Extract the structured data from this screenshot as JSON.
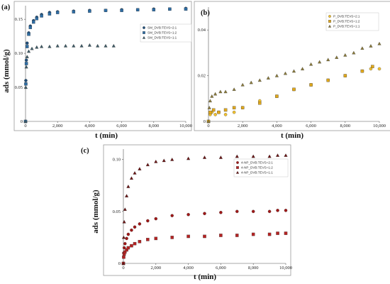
{
  "chart_data": [
    {
      "panel_label": "(a)",
      "type": "scatter",
      "xlabel": "t (min)",
      "ylabel": "ads (mmol/g)",
      "xlim": [
        0,
        10000
      ],
      "ylim": [
        0,
        0.17
      ],
      "xticks": [
        "0",
        "2,000",
        "4,000",
        "6,000",
        "8,000",
        "10,000"
      ],
      "yticks": [
        "0",
        "0.05",
        "0.10",
        "0.15"
      ],
      "legend_position": "top-right",
      "series": [
        {
          "name": "SM_DVB:TEVS=2:1",
          "color": "#1f4e7a",
          "marker": "circle",
          "x": [
            0,
            20,
            50,
            100,
            200,
            300,
            500,
            700,
            1000,
            1500,
            2000,
            3000,
            4000,
            5000,
            6000,
            7000,
            8000,
            9000,
            10000
          ],
          "y": [
            0.0,
            0.06,
            0.09,
            0.115,
            0.13,
            0.14,
            0.148,
            0.153,
            0.157,
            0.16,
            0.161,
            0.162,
            0.163,
            0.163,
            0.164,
            0.164,
            0.165,
            0.165,
            0.166
          ]
        },
        {
          "name": "SM_DVB:TEVS=1:2",
          "color": "#2e6da4",
          "marker": "square",
          "x": [
            0,
            20,
            50,
            100,
            200,
            300,
            500,
            700,
            1000,
            1500,
            2000,
            3000,
            4000,
            5000,
            6000,
            7000,
            8000,
            9000,
            10000
          ],
          "y": [
            0.0,
            0.055,
            0.085,
            0.11,
            0.128,
            0.138,
            0.146,
            0.151,
            0.155,
            0.158,
            0.16,
            0.161,
            0.162,
            0.163,
            0.163,
            0.164,
            0.164,
            0.165,
            0.165
          ]
        },
        {
          "name": "SM_DVB:TEVS=1:1",
          "color": "#3d5a66",
          "marker": "triangle",
          "x": [
            0,
            20,
            50,
            100,
            200,
            400,
            700,
            1000,
            1500,
            2000,
            2500,
            3000,
            3500,
            4000,
            4500,
            5000,
            5500
          ],
          "y": [
            0.0,
            0.05,
            0.08,
            0.095,
            0.103,
            0.107,
            0.109,
            0.11,
            0.11,
            0.111,
            0.111,
            0.111,
            0.111,
            0.112,
            0.111,
            0.111,
            0.111
          ]
        }
      ]
    },
    {
      "panel_label": "(b)",
      "type": "scatter",
      "xlabel": "t (min)",
      "ylabel": "",
      "xlim": [
        0,
        10000
      ],
      "ylim": [
        0,
        0.05
      ],
      "xticks": [
        "0",
        "2,000",
        "4,000",
        "6,000",
        "8,000",
        "10,000"
      ],
      "yticks": [
        "0",
        "0.02",
        "0.04"
      ],
      "legend_position": "top-right",
      "series": [
        {
          "name": "P_DVB:TEVS=2:1",
          "color": "#f2c12e",
          "marker": "circle",
          "x": [
            0,
            100,
            200,
            400,
            600,
            1000,
            1500,
            2000,
            3000,
            4000,
            5000,
            6000,
            7000,
            8000,
            9000,
            9500,
            10000
          ],
          "y": [
            0.0,
            0.003,
            0.004,
            0.003,
            0.004,
            0.003,
            0.004,
            0.006,
            0.009,
            0.011,
            0.014,
            0.016,
            0.018,
            0.02,
            0.022,
            0.023,
            0.023
          ]
        },
        {
          "name": "P_DVB:TEVS=1:2",
          "color": "#e0a81c",
          "marker": "square",
          "x": [
            0,
            100,
            300,
            600,
            1000,
            1500,
            2000,
            3000,
            4000,
            5000,
            6000,
            7000,
            8000,
            9000,
            9600
          ],
          "y": [
            0.0,
            0.004,
            0.005,
            0.004,
            0.005,
            0.006,
            0.006,
            0.008,
            0.011,
            0.014,
            0.016,
            0.018,
            0.02,
            0.022,
            0.024
          ]
        },
        {
          "name": "P_DVB:TEVS=1:1",
          "color": "#8a7a3a",
          "marker": "triangle",
          "x": [
            0,
            50,
            100,
            200,
            400,
            700,
            1000,
            1500,
            2000,
            2500,
            3000,
            3500,
            4000,
            4500,
            5000,
            5500,
            6000,
            6500,
            7000,
            7500,
            8000,
            8500,
            9000,
            9500,
            10000
          ],
          "y": [
            0.0,
            0.006,
            0.009,
            0.011,
            0.012,
            0.013,
            0.013,
            0.014,
            0.016,
            0.017,
            0.018,
            0.019,
            0.02,
            0.021,
            0.022,
            0.023,
            0.025,
            0.026,
            0.027,
            0.028,
            0.029,
            0.03,
            0.032,
            0.033,
            0.034
          ]
        }
      ]
    },
    {
      "panel_label": "(c)",
      "type": "scatter",
      "xlabel": "t (min)",
      "ylabel": "ads (mmol/g)",
      "xlim": [
        0,
        10000
      ],
      "ylim": [
        0,
        0.11
      ],
      "xticks": [
        "0",
        "2,000",
        "4,000",
        "6,000",
        "8,000",
        "10,000"
      ],
      "yticks": [
        "0",
        "0.05",
        "0.10"
      ],
      "legend_position": "top-right",
      "series": [
        {
          "name": "4-NP_DVB:TEVS=2:1",
          "color": "#a01818",
          "marker": "circle",
          "x": [
            0,
            20,
            50,
            100,
            200,
            300,
            500,
            700,
            1000,
            1500,
            2000,
            3000,
            4000,
            5000,
            6000,
            7000,
            8000,
            9000,
            9500,
            10000
          ],
          "y": [
            0.0,
            0.01,
            0.015,
            0.019,
            0.024,
            0.028,
            0.032,
            0.035,
            0.038,
            0.041,
            0.043,
            0.046,
            0.047,
            0.048,
            0.049,
            0.05,
            0.05,
            0.05,
            0.051,
            0.051
          ]
        },
        {
          "name": "4-NP_DVB:TEVS=1:2",
          "color": "#b52323",
          "marker": "square",
          "x": [
            0,
            20,
            50,
            100,
            200,
            300,
            500,
            700,
            1000,
            1500,
            2000,
            3000,
            4000,
            5000,
            6000,
            7000,
            8000,
            9000,
            9500,
            10000
          ],
          "y": [
            0.0,
            0.006,
            0.009,
            0.011,
            0.013,
            0.015,
            0.017,
            0.019,
            0.021,
            0.023,
            0.024,
            0.025,
            0.026,
            0.026,
            0.027,
            0.027,
            0.028,
            0.028,
            0.029,
            0.029
          ]
        },
        {
          "name": "4-NP_DVB:TEVS=1:1",
          "color": "#6a1414",
          "marker": "triangle",
          "x": [
            0,
            20,
            50,
            100,
            200,
            300,
            500,
            700,
            1000,
            1500,
            2000,
            2500,
            3000,
            4000,
            5000,
            6000,
            7000,
            8000,
            9000,
            9500,
            10000
          ],
          "y": [
            0.0,
            0.025,
            0.04,
            0.052,
            0.065,
            0.074,
            0.082,
            0.087,
            0.091,
            0.095,
            0.098,
            0.099,
            0.1,
            0.101,
            0.102,
            0.102,
            0.103,
            0.103,
            0.103,
            0.104,
            0.104
          ]
        }
      ]
    }
  ]
}
